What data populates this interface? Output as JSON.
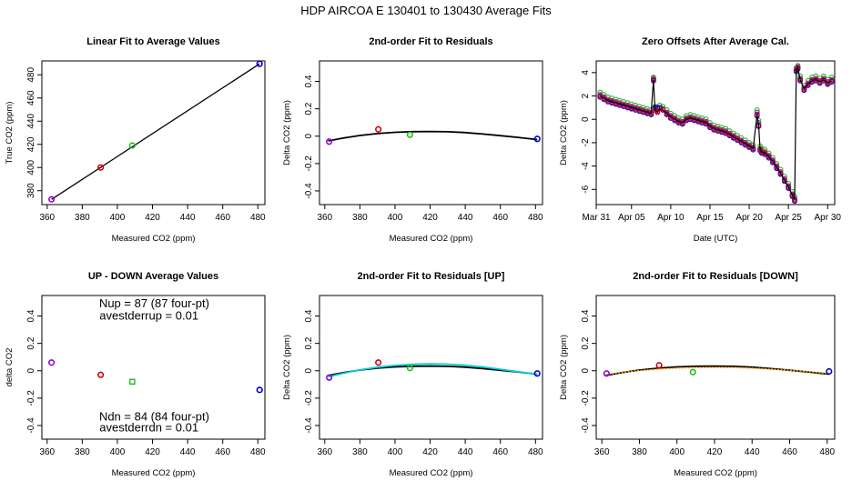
{
  "figure": {
    "title": "HDP    AIRCOA E   130401 to 130430   Average Fits"
  },
  "chart_data": [
    {
      "id": "p1",
      "type": "scatter",
      "title": "Linear Fit to Average Values",
      "xlabel": "Measured CO2 (ppm)",
      "ylabel": "True CO2 (ppm)",
      "xlim": [
        357,
        484
      ],
      "ylim": [
        368,
        492
      ],
      "xticks": [
        360,
        380,
        400,
        420,
        440,
        460,
        480
      ],
      "yticks": [
        380,
        400,
        420,
        440,
        460,
        480
      ],
      "points": [
        {
          "x": 362.5,
          "y": 372.5,
          "color": "#9400d3"
        },
        {
          "x": 390.5,
          "y": 400.0,
          "color": "#d40000"
        },
        {
          "x": 408.5,
          "y": 419.0,
          "color": "#22bb22"
        },
        {
          "x": 481.0,
          "y": 489.5,
          "color": "#0000cc"
        }
      ],
      "lines": [
        {
          "name": "linear fit",
          "color": "#000000",
          "x": [
            362.5,
            481.0
          ],
          "y": [
            372.5,
            489.5
          ]
        }
      ]
    },
    {
      "id": "p2",
      "type": "scatter",
      "title": "2nd-order Fit to Residuals",
      "xlabel": "Measured CO2 (ppm)",
      "ylabel": "Delta CO2 (ppm)",
      "xlim": [
        357,
        484
      ],
      "ylim": [
        -0.5,
        0.55
      ],
      "xticks": [
        360,
        380,
        400,
        420,
        440,
        460,
        480
      ],
      "yticks": [
        -0.4,
        -0.2,
        0.0,
        0.2,
        0.4
      ],
      "points": [
        {
          "x": 362.5,
          "y": -0.04,
          "color": "#9400d3"
        },
        {
          "x": 390.5,
          "y": 0.05,
          "color": "#d40000"
        },
        {
          "x": 408.5,
          "y": 0.01,
          "color": "#22bb22"
        },
        {
          "x": 481.0,
          "y": -0.02,
          "color": "#0000cc"
        }
      ],
      "lines": [
        {
          "name": "fit",
          "color": "#000000",
          "width": 1.8,
          "x": [
            362,
            370,
            380,
            390,
            400,
            410,
            420,
            430,
            440,
            450,
            460,
            470,
            481
          ],
          "y": [
            -0.035,
            -0.015,
            0.005,
            0.019,
            0.028,
            0.033,
            0.034,
            0.032,
            0.026,
            0.016,
            0.004,
            -0.009,
            -0.025
          ]
        }
      ]
    },
    {
      "id": "p3",
      "type": "line",
      "title": "Zero Offsets After Average Cal.",
      "xlabel": "Date (UTC)",
      "ylabel": "Delta CO2 (ppm)",
      "xlim": [
        0.5,
        30.9
      ],
      "ylim": [
        -7.3,
        5.0
      ],
      "xticks": [
        0.5,
        5,
        10,
        15,
        20,
        25,
        30
      ],
      "xtick_labels": [
        "Mar 31",
        "Apr 05",
        "Apr 10",
        "Apr 15",
        "Apr 20",
        "Apr 25",
        "Apr 30"
      ],
      "yticks": [
        -6,
        -4,
        -2,
        0,
        2,
        4
      ],
      "series_x": [
        1.0,
        1.5,
        2.0,
        2.5,
        3.0,
        3.5,
        4.0,
        4.5,
        5.0,
        5.5,
        6.0,
        6.5,
        7.0,
        7.5,
        7.8,
        8.0,
        8.3,
        8.6,
        9.0,
        9.5,
        10.0,
        10.5,
        11.0,
        11.5,
        12.0,
        12.5,
        13.0,
        13.5,
        14.0,
        14.5,
        15.0,
        15.5,
        16.0,
        16.5,
        17.0,
        17.5,
        18.0,
        18.5,
        19.0,
        19.5,
        20.0,
        20.5,
        21.0,
        21.2,
        21.4,
        21.6,
        22.0,
        22.5,
        23.0,
        23.5,
        24.0,
        24.5,
        25.0,
        25.5,
        25.8,
        26.0,
        26.2,
        26.5,
        27.0,
        27.5,
        28.0,
        28.5,
        29.0,
        29.5,
        30.0,
        30.5
      ],
      "series": [
        {
          "name": "magenta",
          "color": "#ee00ee",
          "values": [
            2.0,
            1.8,
            1.6,
            1.5,
            1.4,
            1.3,
            1.2,
            1.1,
            1.0,
            0.9,
            0.8,
            0.7,
            0.6,
            0.5,
            3.4,
            0.8,
            0.6,
            0.9,
            0.8,
            0.5,
            0.2,
            0.0,
            -0.2,
            -0.3,
            0.0,
            0.1,
            0.0,
            -0.1,
            -0.2,
            -0.3,
            -0.6,
            -0.8,
            -0.9,
            -1.0,
            -1.1,
            -1.3,
            -1.5,
            -1.7,
            -1.9,
            -2.1,
            -2.3,
            -2.5,
            0.4,
            -0.5,
            -2.6,
            -2.8,
            -2.9,
            -3.2,
            -3.6,
            -4.1,
            -4.6,
            -5.2,
            -5.8,
            -6.5,
            -6.9,
            4.2,
            4.4,
            3.4,
            2.6,
            3.0,
            3.3,
            3.4,
            3.2,
            3.4,
            3.1,
            3.3
          ]
        },
        {
          "name": "purple",
          "color": "#9400d3",
          "values": [
            2.1,
            1.9,
            1.7,
            1.6,
            1.5,
            1.4,
            1.3,
            1.2,
            1.1,
            1.0,
            0.9,
            0.8,
            0.7,
            0.6,
            3.5,
            0.9,
            0.7,
            1.0,
            0.9,
            0.6,
            0.3,
            0.1,
            -0.1,
            -0.2,
            0.1,
            0.2,
            0.1,
            0.0,
            -0.1,
            -0.2,
            -0.5,
            -0.7,
            -0.8,
            -0.9,
            -1.0,
            -1.2,
            -1.4,
            -1.6,
            -1.8,
            -2.0,
            -2.2,
            -2.4,
            0.6,
            -0.3,
            -2.5,
            -2.7,
            -2.8,
            -3.1,
            -3.5,
            -4.0,
            -4.5,
            -5.1,
            -5.7,
            -6.4,
            -6.8,
            4.3,
            4.5,
            3.5,
            2.7,
            3.1,
            3.4,
            3.5,
            3.3,
            3.5,
            3.2,
            3.4
          ]
        },
        {
          "name": "green",
          "color": "#22bb22",
          "values": [
            2.3,
            2.1,
            1.9,
            1.8,
            1.7,
            1.6,
            1.5,
            1.4,
            1.3,
            1.2,
            1.1,
            1.0,
            0.9,
            0.8,
            3.6,
            1.1,
            0.9,
            1.2,
            1.1,
            0.8,
            0.5,
            0.3,
            0.1,
            0.0,
            0.3,
            0.4,
            0.3,
            0.2,
            0.1,
            0.0,
            -0.3,
            -0.5,
            -0.6,
            -0.7,
            -0.8,
            -1.0,
            -1.2,
            -1.4,
            -1.6,
            -1.8,
            -2.0,
            -2.2,
            0.8,
            -0.1,
            -2.3,
            -2.5,
            -2.6,
            -2.9,
            -3.3,
            -3.8,
            -4.3,
            -4.9,
            -5.5,
            -6.2,
            -6.6,
            4.4,
            4.6,
            3.7,
            2.9,
            3.3,
            3.6,
            3.7,
            3.5,
            3.7,
            3.4,
            3.6
          ]
        },
        {
          "name": "blue",
          "color": "#0000cc",
          "values": [
            1.9,
            1.7,
            1.5,
            1.4,
            1.3,
            1.2,
            1.1,
            1.0,
            0.9,
            0.8,
            0.7,
            0.6,
            0.5,
            0.4,
            3.3,
            1.0,
            1.0,
            1.0,
            0.8,
            0.4,
            0.1,
            -0.1,
            -0.3,
            -0.4,
            -0.1,
            0.0,
            -0.1,
            -0.2,
            -0.3,
            -0.4,
            -0.7,
            -0.9,
            -1.0,
            -1.1,
            -1.2,
            -1.4,
            -1.6,
            -1.8,
            -2.0,
            -2.2,
            -2.4,
            -2.6,
            0.3,
            -0.6,
            -2.7,
            -2.9,
            -3.0,
            -3.3,
            -3.7,
            -4.2,
            -4.7,
            -5.3,
            -5.9,
            -6.6,
            -7.0,
            4.1,
            4.3,
            3.3,
            2.5,
            2.9,
            3.2,
            3.3,
            3.1,
            3.3,
            3.0,
            3.2
          ]
        },
        {
          "name": "red",
          "color": "#d40000",
          "values": [
            2.0,
            1.8,
            1.6,
            1.5,
            1.4,
            1.3,
            1.2,
            1.1,
            1.0,
            0.9,
            0.8,
            0.7,
            0.6,
            0.5,
            3.4,
            0.8,
            0.6,
            0.9,
            0.8,
            0.5,
            0.2,
            0.0,
            -0.2,
            -0.3,
            0.0,
            0.1,
            0.0,
            -0.1,
            -0.2,
            -0.3,
            -0.6,
            -0.8,
            -0.9,
            -1.0,
            -1.1,
            -1.3,
            -1.5,
            -1.7,
            -1.9,
            -2.1,
            -2.3,
            -2.5,
            0.4,
            -0.5,
            -2.6,
            -2.8,
            -2.9,
            -3.2,
            -3.6,
            -4.1,
            -4.6,
            -5.2,
            -5.8,
            -6.5,
            -6.9,
            4.2,
            4.4,
            3.4,
            2.6,
            3.0,
            3.3,
            3.4,
            3.2,
            3.4,
            3.1,
            3.3
          ]
        },
        {
          "name": "black",
          "color": "#000000",
          "values": [
            2.0,
            1.8,
            1.6,
            1.5,
            1.4,
            1.3,
            1.2,
            1.1,
            1.0,
            0.9,
            0.8,
            0.7,
            0.6,
            0.5,
            3.4,
            0.8,
            0.6,
            0.9,
            0.8,
            0.5,
            0.2,
            0.0,
            -0.2,
            -0.3,
            0.0,
            0.1,
            0.0,
            -0.1,
            -0.2,
            -0.3,
            -0.6,
            -0.8,
            -0.9,
            -1.0,
            -1.1,
            -1.3,
            -1.5,
            -1.7,
            -1.9,
            -2.1,
            -2.3,
            -2.5,
            0.4,
            -0.5,
            -2.6,
            -2.8,
            -2.9,
            -3.2,
            -3.6,
            -4.1,
            -4.6,
            -5.2,
            -5.8,
            -6.5,
            -6.9,
            4.2,
            4.4,
            3.4,
            2.6,
            3.0,
            3.3,
            3.4,
            3.2,
            3.4,
            3.1,
            3.3
          ]
        }
      ]
    },
    {
      "id": "p4",
      "type": "scatter",
      "title": "UP - DOWN Average Values",
      "xlabel": "Measured CO2 (ppm)",
      "ylabel": "delta CO2",
      "xlim": [
        357,
        484
      ],
      "ylim": [
        -0.5,
        0.55
      ],
      "xticks": [
        360,
        380,
        400,
        420,
        440,
        460,
        480
      ],
      "yticks": [
        -0.4,
        -0.2,
        0.0,
        0.2,
        0.4
      ],
      "points": [
        {
          "x": 362.5,
          "y": 0.06,
          "color": "#9400d3"
        },
        {
          "x": 390.5,
          "y": -0.03,
          "color": "#d40000"
        },
        {
          "x": 408.5,
          "y": -0.08,
          "color": "#22bb22"
        },
        {
          "x": 481.0,
          "y": -0.14,
          "color": "#0000cc"
        }
      ],
      "annotations": [
        {
          "text": "Nup = 87 (87 four-pt)",
          "x": 421,
          "y": 0.465
        },
        {
          "text": "avestderrup =  0.01",
          "x": 418,
          "y": 0.375
        },
        {
          "text": "Ndn = 84 (84 four-pt)",
          "x": 421,
          "y": -0.365
        },
        {
          "text": "avestderrdn =  0.01",
          "x": 418,
          "y": -0.445
        }
      ]
    },
    {
      "id": "p5",
      "type": "scatter",
      "title": "2nd-order Fit to Residuals [UP]",
      "xlabel": "Measured CO2 (ppm)",
      "ylabel": "Delta CO2 (ppm)",
      "xlim": [
        357,
        484
      ],
      "ylim": [
        -0.5,
        0.55
      ],
      "xticks": [
        360,
        380,
        400,
        420,
        440,
        460,
        480
      ],
      "yticks": [
        -0.4,
        -0.2,
        0.0,
        0.2,
        0.4
      ],
      "points": [
        {
          "x": 362.5,
          "y": -0.05,
          "color": "#9400d3"
        },
        {
          "x": 390.5,
          "y": 0.06,
          "color": "#d40000"
        },
        {
          "x": 408.5,
          "y": 0.02,
          "color": "#22bb22"
        },
        {
          "x": 481.0,
          "y": -0.02,
          "color": "#0000cc"
        }
      ],
      "lines": [
        {
          "name": "fit",
          "color": "#000000",
          "width": 1.8,
          "x": [
            362,
            370,
            380,
            390,
            400,
            410,
            420,
            430,
            440,
            450,
            460,
            470,
            481
          ],
          "y": [
            -0.035,
            -0.015,
            0.005,
            0.019,
            0.028,
            0.033,
            0.034,
            0.032,
            0.026,
            0.016,
            0.004,
            -0.009,
            -0.025
          ]
        },
        {
          "name": "up fit",
          "color": "#00d0d8",
          "width": 1.8,
          "x": [
            362,
            370,
            380,
            390,
            400,
            410,
            420,
            430,
            440,
            450,
            460,
            470,
            481
          ],
          "y": [
            -0.045,
            -0.02,
            0.007,
            0.026,
            0.039,
            0.047,
            0.05,
            0.048,
            0.041,
            0.028,
            0.011,
            -0.007,
            -0.025
          ]
        }
      ]
    },
    {
      "id": "p6",
      "type": "scatter",
      "title": "2nd-order Fit to Residuals [DOWN]",
      "xlabel": "Measured CO2 (ppm)",
      "ylabel": "Delta CO2 (ppm)",
      "xlim": [
        357,
        484
      ],
      "ylim": [
        -0.5,
        0.55
      ],
      "xticks": [
        360,
        380,
        400,
        420,
        440,
        460,
        480
      ],
      "yticks": [
        -0.4,
        -0.2,
        0.0,
        0.2,
        0.4
      ],
      "points": [
        {
          "x": 362.5,
          "y": -0.02,
          "color": "#9400d3"
        },
        {
          "x": 390.5,
          "y": 0.04,
          "color": "#d40000"
        },
        {
          "x": 408.5,
          "y": -0.01,
          "color": "#22bb22"
        },
        {
          "x": 481.0,
          "y": -0.005,
          "color": "#0000cc"
        }
      ],
      "lines": [
        {
          "name": "fit",
          "color": "#000000",
          "width": 1.8,
          "x": [
            362,
            370,
            380,
            390,
            400,
            410,
            420,
            430,
            440,
            450,
            460,
            470,
            481
          ],
          "y": [
            -0.035,
            -0.015,
            0.005,
            0.019,
            0.028,
            0.033,
            0.034,
            0.032,
            0.026,
            0.016,
            0.004,
            -0.009,
            -0.025
          ]
        },
        {
          "name": "down fit",
          "color": "#ffa500",
          "width": 1.4,
          "dash": true,
          "x": [
            362,
            370,
            380,
            390,
            400,
            410,
            420,
            430,
            440,
            450,
            460,
            470,
            481
          ],
          "y": [
            -0.028,
            -0.013,
            0.002,
            0.012,
            0.019,
            0.023,
            0.024,
            0.023,
            0.019,
            0.012,
            0.003,
            -0.007,
            -0.02
          ]
        }
      ]
    }
  ]
}
